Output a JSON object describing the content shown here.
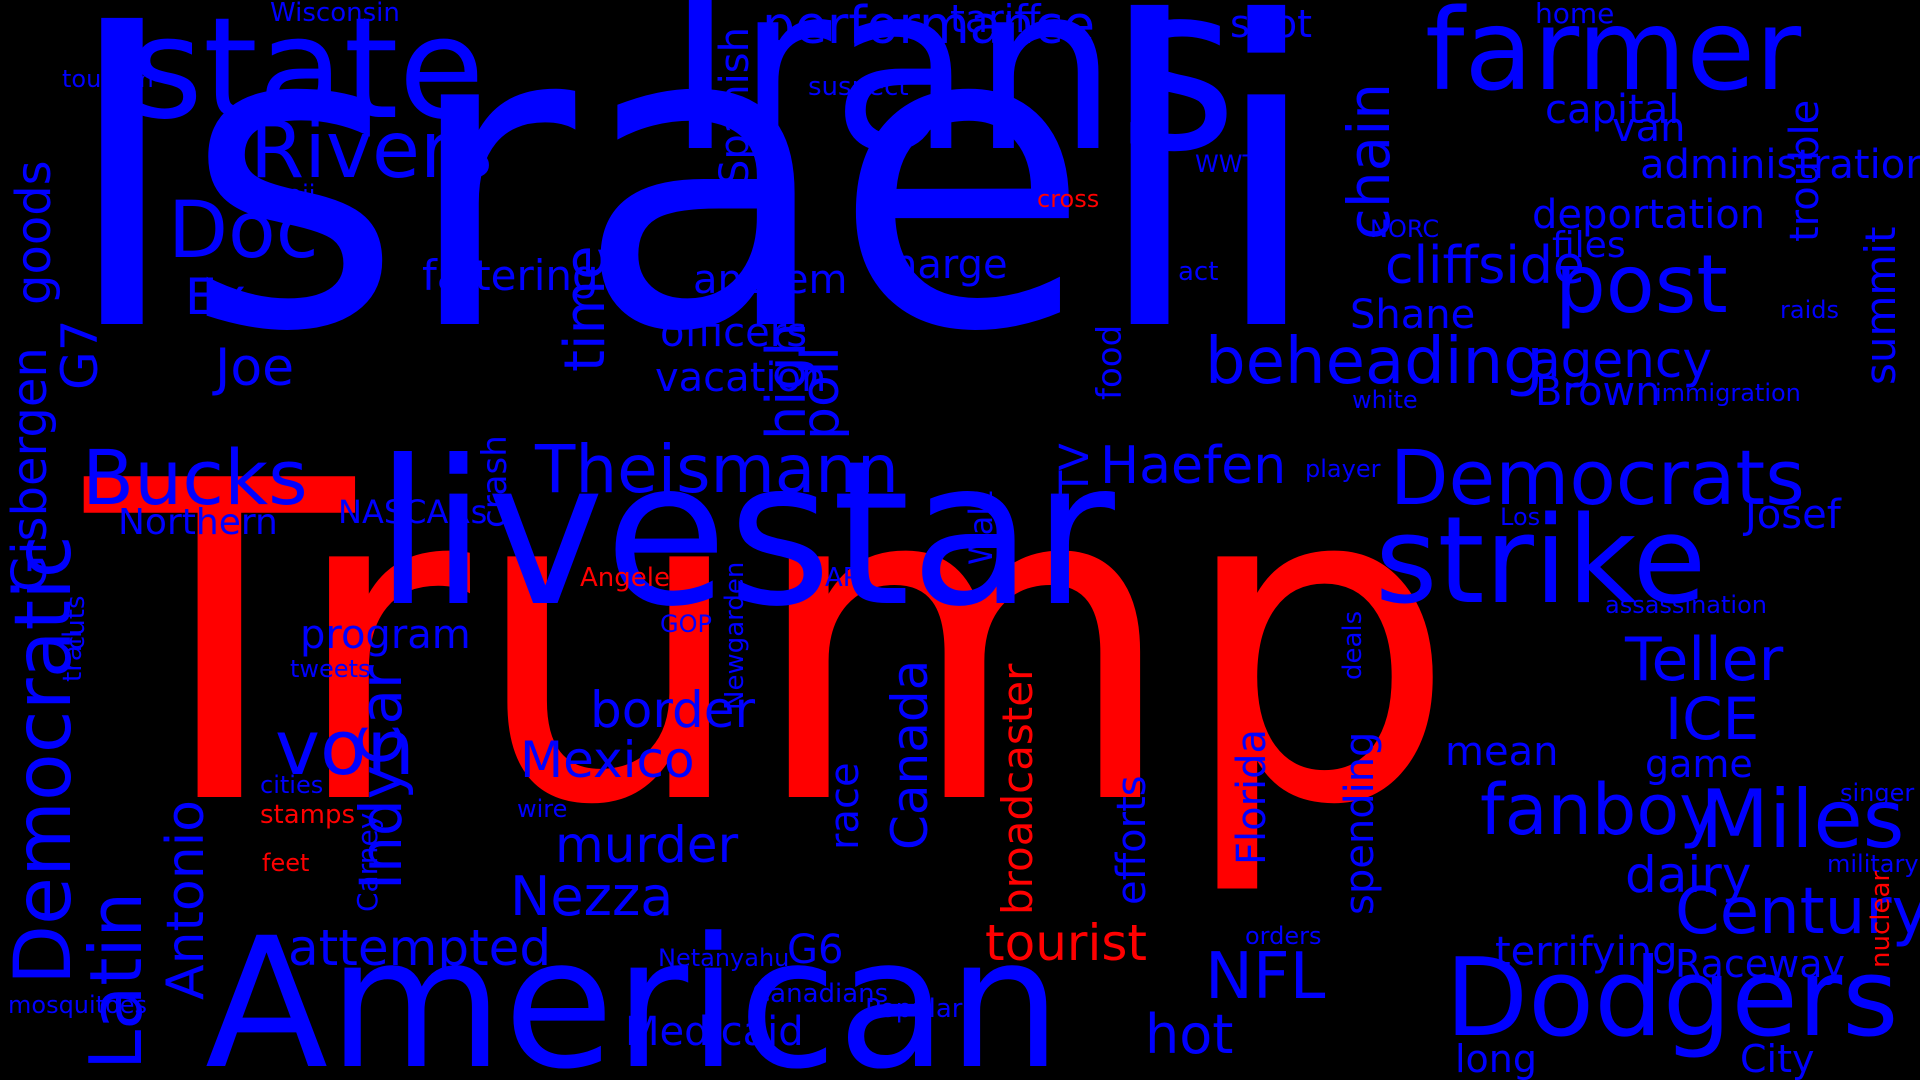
{
  "colors": {
    "background": "#000000",
    "primary": "#0000ff",
    "accent": "#ff0000"
  },
  "words": [
    "Trump",
    "Israeli",
    "Trans",
    "state",
    "farmer",
    "livestar",
    "strike",
    "American",
    "Dodgers",
    "Democrats",
    "post",
    "Rivers",
    "Doc",
    "Bucks",
    "Theismann",
    "Haefen",
    "beheading",
    "cliffside",
    "agency",
    "Ex",
    "Joe",
    "von",
    "NFL",
    "Century",
    "Miles",
    "Teller",
    "ICE",
    "fanboy",
    "tourist",
    "attempted",
    "hot",
    "Nezza",
    "murder",
    "Mexico",
    "border",
    "dairy",
    "game",
    "program",
    "Northern",
    "faltering",
    "performance",
    "tariff",
    "spot",
    "anthem",
    "charge",
    "officers",
    "vacation",
    "Shane",
    "Brown",
    "deportation",
    "files",
    "capital",
    "administration",
    "Josef",
    "mean",
    "terrifying",
    "Raceway",
    "G6",
    "Medicaid",
    "long",
    "City",
    "van",
    "home",
    "Wisconsin",
    "tourism",
    "suspect",
    "Hawaii",
    "WWT",
    "cross",
    "act",
    "NORC",
    "raids",
    "immigration",
    "white",
    "player",
    "Los",
    "NASCARs",
    "Angeles",
    "AP",
    "GOP",
    "tweets",
    "assassination",
    "cities",
    "stamps",
    "wire",
    "feet",
    "singer",
    "military",
    "orders",
    "Netanyahu",
    "Canadians",
    "Popular",
    "mosquitoes",
    "Gisbergen",
    "goods",
    "G7",
    "Democratic",
    "cuts",
    "trail",
    "Latin",
    "Antonio",
    "IndyCar",
    "Carney",
    "Newgarden",
    "race",
    "Canada",
    "broadcaster",
    "efforts",
    "Florida",
    "spending",
    "deals",
    "nuclear",
    "crash",
    "Walz",
    "TV",
    "food",
    "high",
    "poll",
    "time",
    "Spanish",
    "chain",
    "trouble",
    "summit"
  ]
}
